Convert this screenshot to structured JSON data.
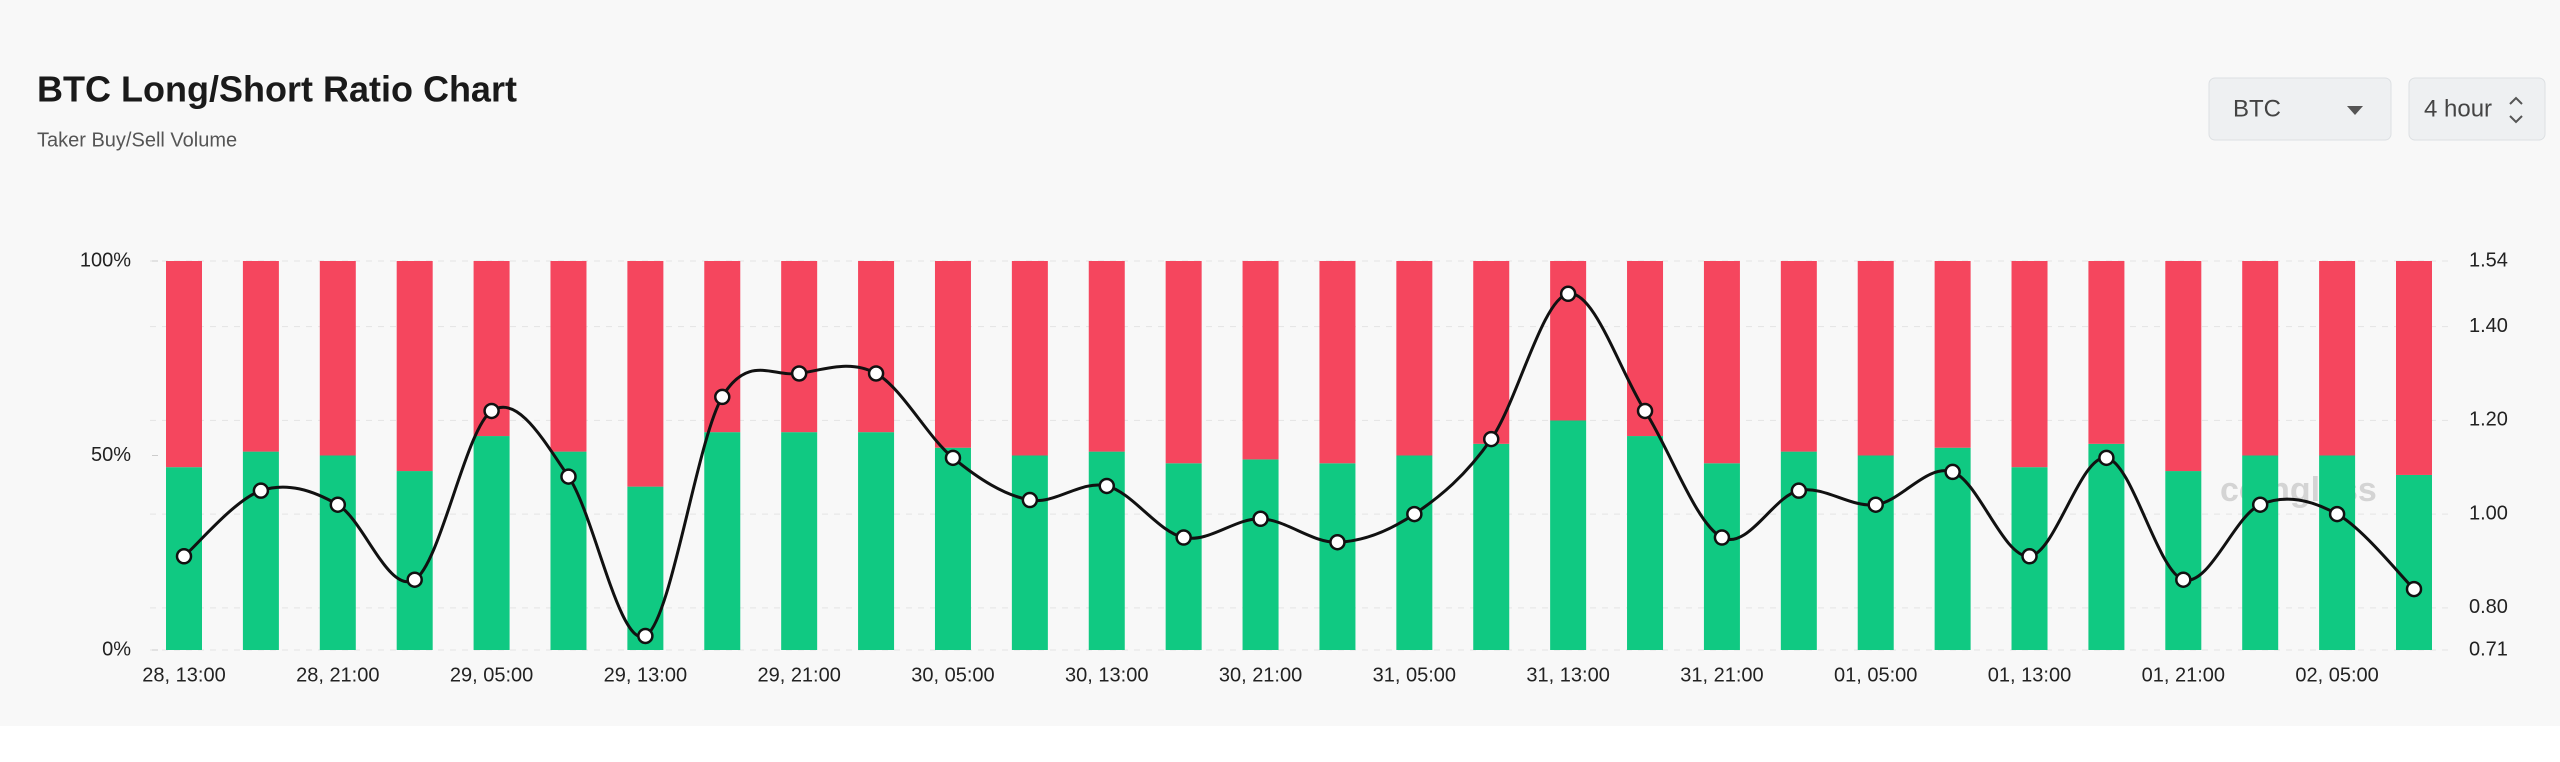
{
  "header": {
    "title": "BTC Long/Short Ratio Chart",
    "subtitle": "Taker Buy/Sell Volume"
  },
  "controls": {
    "symbol": "BTC",
    "interval": "4 hour"
  },
  "watermark": "coinglass",
  "chart_data": {
    "type": "bar",
    "stacked": true,
    "categories": [
      "28, 13:00",
      null,
      "28, 21:00",
      null,
      "29, 05:00",
      null,
      "29, 13:00",
      null,
      "29, 21:00",
      null,
      "30, 05:00",
      null,
      "30, 13:00",
      null,
      "30, 21:00",
      null,
      "31, 05:00",
      null,
      "31, 13:00",
      null,
      "31, 21:00",
      null,
      "01, 05:00",
      null,
      "01, 13:00",
      null,
      "01, 21:00",
      null,
      "02, 05:00",
      null
    ],
    "series": [
      {
        "color": "#10c982",
        "values": [
          47,
          51,
          50,
          46,
          55,
          51,
          42,
          56,
          56,
          56,
          52,
          50,
          51,
          48,
          49,
          48,
          50,
          53,
          59,
          55,
          48,
          51,
          50,
          52,
          47,
          53,
          46,
          50,
          50,
          45
        ]
      },
      {
        "color": "#f5465e",
        "values": [
          53,
          49,
          50,
          54,
          45,
          49,
          58,
          44,
          44,
          44,
          48,
          50,
          49,
          52,
          51,
          52,
          50,
          47,
          41,
          45,
          52,
          49,
          50,
          48,
          53,
          47,
          54,
          50,
          50,
          55
        ]
      },
      {
        "type": "line",
        "axis": "y2",
        "color": "#111111",
        "values": [
          0.91,
          1.05,
          1.02,
          0.86,
          1.22,
          1.08,
          0.74,
          1.25,
          1.3,
          1.3,
          1.12,
          1.03,
          1.06,
          0.95,
          0.99,
          0.94,
          1.0,
          1.16,
          1.47,
          1.22,
          0.95,
          1.05,
          1.02,
          1.09,
          0.91,
          1.12,
          0.86,
          1.02,
          1.0,
          0.84
        ]
      }
    ],
    "ylim": [
      0,
      100
    ],
    "yticks": [
      {
        "value": 0,
        "label": "0%"
      },
      {
        "value": 50,
        "label": "50%"
      },
      {
        "value": 100,
        "label": "100%"
      }
    ],
    "y2lim": [
      0.71,
      1.54
    ],
    "y2ticks": [
      0.71,
      {
        "value": 0.8,
        "label": "0.80"
      },
      {
        "value": 1.0,
        "label": "1.00"
      },
      {
        "value": 1.2,
        "label": "1.20"
      },
      {
        "value": 1.4,
        "label": "1.40"
      },
      1.54
    ],
    "grid": true
  }
}
